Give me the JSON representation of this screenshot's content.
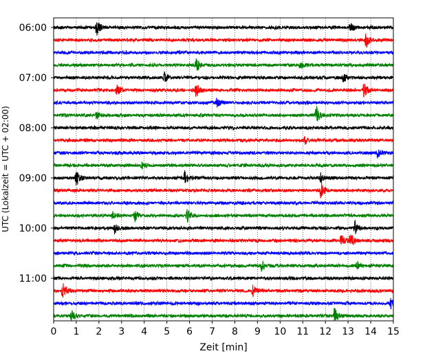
{
  "chart_data": {
    "type": "line",
    "title": "",
    "xlabel": "Zeit  [min]",
    "ylabel": "UTC (Lokalzeit = UTC + 02:00)",
    "xlim": [
      0,
      15
    ],
    "x_ticks": [
      "0",
      "1",
      "2",
      "3",
      "4",
      "5",
      "6",
      "7",
      "8",
      "9",
      "10",
      "11",
      "12",
      "13",
      "14",
      "15"
    ],
    "y_tick_labels": [
      "06:00",
      "07:00",
      "08:00",
      "09:00",
      "10:00",
      "11:00"
    ],
    "trace_interval_minutes": 15,
    "grid": "vertical dotted",
    "colors": [
      "#000000",
      "#ff0000",
      "#0000ff",
      "#008000"
    ],
    "traces": [
      {
        "start": "06:00",
        "color_index": 0,
        "events": [
          {
            "t": 1.9,
            "amp": 1.0
          },
          {
            "t": 13.1,
            "amp": 0.45
          }
        ]
      },
      {
        "start": "06:15",
        "color_index": 1,
        "events": [
          {
            "t": 13.8,
            "amp": 0.9
          }
        ]
      },
      {
        "start": "06:30",
        "color_index": 2,
        "events": []
      },
      {
        "start": "06:45",
        "color_index": 3,
        "events": [
          {
            "t": 6.3,
            "amp": 0.8
          },
          {
            "t": 10.9,
            "amp": 0.45
          }
        ]
      },
      {
        "start": "07:00",
        "color_index": 0,
        "events": [
          {
            "t": 4.9,
            "amp": 0.45
          },
          {
            "t": 12.8,
            "amp": 0.5
          }
        ]
      },
      {
        "start": "07:15",
        "color_index": 1,
        "events": [
          {
            "t": 2.8,
            "amp": 0.5
          },
          {
            "t": 6.3,
            "amp": 0.85
          },
          {
            "t": 13.7,
            "amp": 0.9
          }
        ]
      },
      {
        "start": "07:30",
        "color_index": 2,
        "events": [
          {
            "t": 7.2,
            "amp": 0.6
          }
        ]
      },
      {
        "start": "07:45",
        "color_index": 3,
        "events": [
          {
            "t": 1.9,
            "amp": 0.4
          },
          {
            "t": 11.6,
            "amp": 1.0
          }
        ]
      },
      {
        "start": "08:00",
        "color_index": 0,
        "events": []
      },
      {
        "start": "08:15",
        "color_index": 1,
        "events": [
          {
            "t": 11.1,
            "amp": 0.4
          }
        ]
      },
      {
        "start": "08:30",
        "color_index": 2,
        "events": [
          {
            "t": 14.3,
            "amp": 0.55
          }
        ]
      },
      {
        "start": "08:45",
        "color_index": 3,
        "events": [
          {
            "t": 3.9,
            "amp": 0.35
          }
        ]
      },
      {
        "start": "09:00",
        "color_index": 0,
        "events": [
          {
            "t": 1.0,
            "amp": 1.0
          },
          {
            "t": 5.8,
            "amp": 0.75
          },
          {
            "t": 11.8,
            "amp": 0.5
          }
        ]
      },
      {
        "start": "09:15",
        "color_index": 1,
        "events": [
          {
            "t": 11.8,
            "amp": 1.0
          }
        ]
      },
      {
        "start": "09:30",
        "color_index": 2,
        "events": []
      },
      {
        "start": "09:45",
        "color_index": 3,
        "events": [
          {
            "t": 3.6,
            "amp": 0.6
          },
          {
            "t": 5.9,
            "amp": 0.7
          },
          {
            "t": 2.6,
            "amp": 0.4
          }
        ]
      },
      {
        "start": "10:00",
        "color_index": 0,
        "events": [
          {
            "t": 2.7,
            "amp": 0.6
          },
          {
            "t": 13.3,
            "amp": 0.75
          }
        ]
      },
      {
        "start": "10:15",
        "color_index": 1,
        "events": [
          {
            "t": 12.7,
            "amp": 0.75
          },
          {
            "t": 13.1,
            "amp": 0.9
          }
        ]
      },
      {
        "start": "10:30",
        "color_index": 2,
        "events": []
      },
      {
        "start": "10:45",
        "color_index": 3,
        "events": [
          {
            "t": 9.2,
            "amp": 0.6
          },
          {
            "t": 13.4,
            "amp": 0.45
          }
        ]
      },
      {
        "start": "11:00",
        "color_index": 0,
        "events": []
      },
      {
        "start": "11:15",
        "color_index": 1,
        "events": [
          {
            "t": 0.4,
            "amp": 1.0
          },
          {
            "t": 8.8,
            "amp": 0.6
          }
        ]
      },
      {
        "start": "11:30",
        "color_index": 2,
        "events": [
          {
            "t": 14.9,
            "amp": 0.5
          }
        ]
      },
      {
        "start": "11:45",
        "color_index": 3,
        "events": [
          {
            "t": 0.8,
            "amp": 0.6
          },
          {
            "t": 12.4,
            "amp": 1.0
          }
        ]
      }
    ]
  }
}
